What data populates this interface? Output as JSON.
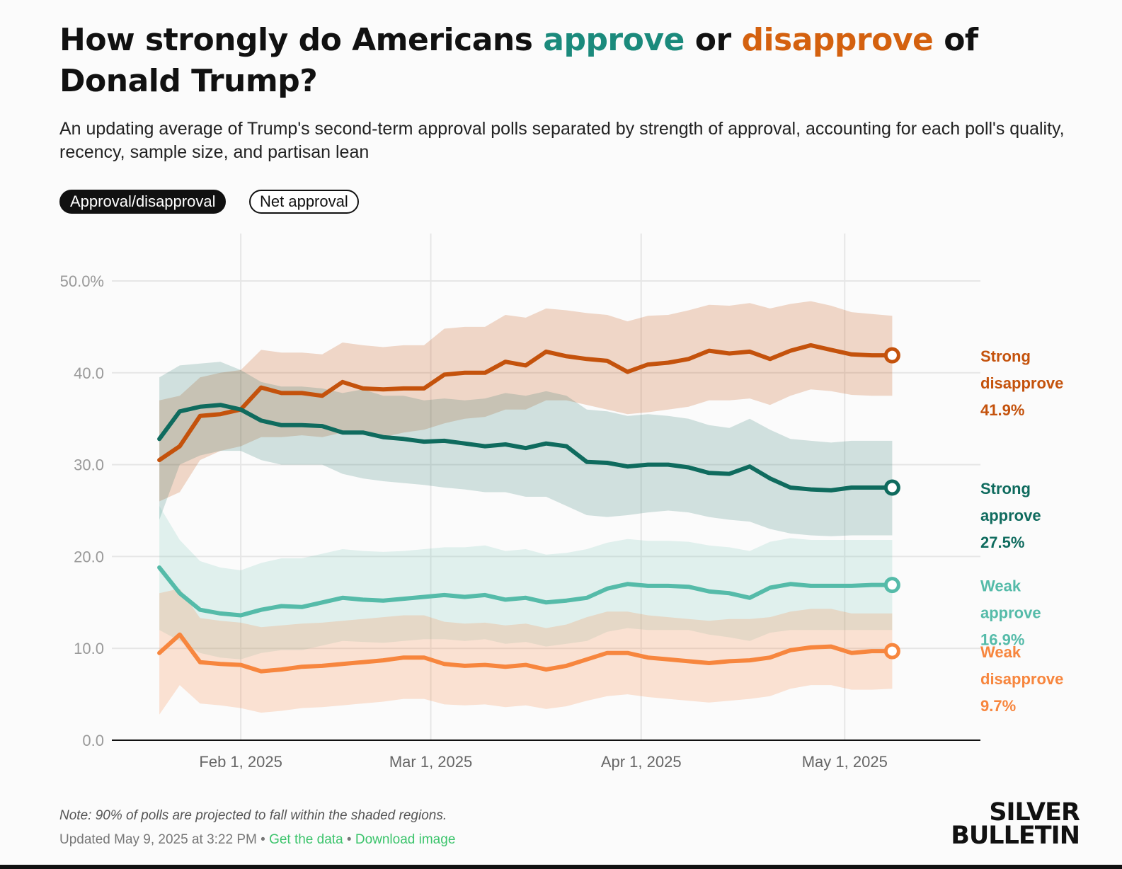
{
  "header": {
    "title_parts": [
      "How strongly do Americans ",
      "approve",
      " or ",
      "disapprove",
      " of Donald Trump?"
    ],
    "subtitle": "An updating average of Trump's second-term approval polls separated by strength of approval, accounting for each poll's quality, recency, sample size, and partisan lean"
  },
  "toggles": {
    "active": "Approval/disapproval",
    "inactive": "Net approval"
  },
  "colors": {
    "approve_accent": "#1b8a7c",
    "disapprove_accent": "#d4610f",
    "strong_disapprove": "#c4520c",
    "strong_approve": "#0f6b5e",
    "weak_approve": "#55bba9",
    "weak_disapprove": "#f7863e"
  },
  "chart_data": {
    "type": "line",
    "title": "",
    "xlabel": "",
    "ylabel": "",
    "ylim": [
      0,
      50
    ],
    "y_ticks": [
      "0.0",
      "10.0",
      "20.0",
      "30.0",
      "40.0",
      "50.0%"
    ],
    "x_ticks": [
      "Feb 1, 2025",
      "Mar 1, 2025",
      "Apr 1, 2025",
      "May 1, 2025"
    ],
    "grid": true,
    "shaded_band_note": "90% of polls are projected to fall within the shaded regions",
    "x": [
      "2025-01-20",
      "2025-01-23",
      "2025-01-26",
      "2025-01-29",
      "2025-02-01",
      "2025-02-04",
      "2025-02-07",
      "2025-02-10",
      "2025-02-13",
      "2025-02-16",
      "2025-02-19",
      "2025-02-22",
      "2025-02-25",
      "2025-02-28",
      "2025-03-03",
      "2025-03-06",
      "2025-03-09",
      "2025-03-12",
      "2025-03-15",
      "2025-03-18",
      "2025-03-21",
      "2025-03-24",
      "2025-03-27",
      "2025-03-30",
      "2025-04-02",
      "2025-04-05",
      "2025-04-08",
      "2025-04-11",
      "2025-04-14",
      "2025-04-17",
      "2025-04-20",
      "2025-04-23",
      "2025-04-26",
      "2025-04-29",
      "2025-05-02",
      "2025-05-05",
      "2025-05-08"
    ],
    "series": [
      {
        "name": "Strong disapprove",
        "values": [
          30.5,
          32.0,
          35.3,
          35.5,
          36.0,
          38.4,
          37.8,
          37.8,
          37.5,
          39.0,
          38.3,
          38.2,
          38.3,
          38.3,
          39.8,
          40.0,
          40.0,
          41.2,
          40.8,
          42.3,
          41.8,
          41.5,
          41.3,
          40.1,
          40.9,
          41.1,
          41.5,
          42.4,
          42.1,
          42.3,
          41.5,
          42.4,
          43.0,
          42.5,
          42.0,
          41.9,
          41.9
        ],
        "lower": [
          26.0,
          27.0,
          30.5,
          31.5,
          32.0,
          33.0,
          33.0,
          33.2,
          33.0,
          33.5,
          33.5,
          33.0,
          33.5,
          33.8,
          34.5,
          35.0,
          35.2,
          36.0,
          36.0,
          37.0,
          37.0,
          36.5,
          36.0,
          35.5,
          35.7,
          36.0,
          36.3,
          37.0,
          37.0,
          37.2,
          36.5,
          37.5,
          38.2,
          38.0,
          37.6,
          37.5,
          37.5
        ],
        "upper": [
          37.0,
          37.5,
          39.5,
          40.0,
          40.3,
          42.5,
          42.2,
          42.2,
          42.0,
          43.3,
          43.0,
          42.8,
          43.0,
          43.0,
          44.8,
          45.0,
          45.0,
          46.3,
          46.0,
          47.0,
          46.8,
          46.5,
          46.3,
          45.6,
          46.2,
          46.3,
          46.8,
          47.4,
          47.3,
          47.6,
          47.0,
          47.5,
          47.8,
          47.3,
          46.6,
          46.4,
          46.2
        ],
        "end_label": [
          "Strong",
          "disapprove",
          "41.9%"
        ]
      },
      {
        "name": "Strong approve",
        "values": [
          32.8,
          35.8,
          36.3,
          36.5,
          36.0,
          34.8,
          34.3,
          34.3,
          34.2,
          33.5,
          33.5,
          33.0,
          32.8,
          32.5,
          32.6,
          32.3,
          32.0,
          32.2,
          31.8,
          32.3,
          32.0,
          30.3,
          30.2,
          29.8,
          30.0,
          30.0,
          29.7,
          29.1,
          29.0,
          29.8,
          28.5,
          27.5,
          27.3,
          27.2,
          27.5,
          27.5,
          27.5
        ],
        "lower": [
          24.0,
          30.0,
          31.0,
          31.5,
          31.5,
          30.5,
          30.0,
          30.0,
          30.0,
          29.0,
          28.5,
          28.2,
          28.0,
          27.8,
          27.5,
          27.3,
          27.0,
          27.0,
          26.5,
          26.5,
          25.5,
          24.5,
          24.3,
          24.5,
          24.8,
          25.0,
          24.8,
          24.3,
          24.0,
          23.8,
          23.0,
          22.5,
          22.3,
          22.2,
          22.3,
          22.3,
          22.3
        ],
        "upper": [
          39.5,
          40.8,
          41.0,
          41.2,
          40.3,
          39.0,
          38.5,
          38.5,
          38.3,
          37.8,
          38.2,
          37.5,
          37.5,
          37.0,
          37.2,
          37.0,
          37.2,
          37.8,
          37.5,
          38.0,
          37.5,
          36.0,
          35.8,
          35.3,
          35.5,
          35.3,
          35.0,
          34.3,
          34.0,
          35.0,
          33.8,
          32.8,
          32.6,
          32.4,
          32.6,
          32.6,
          32.6
        ],
        "end_label": [
          "Strong",
          "approve",
          "27.5%"
        ]
      },
      {
        "name": "Weak approve",
        "values": [
          18.8,
          16.0,
          14.2,
          13.8,
          13.6,
          14.2,
          14.6,
          14.5,
          15.0,
          15.5,
          15.3,
          15.2,
          15.4,
          15.6,
          15.8,
          15.6,
          15.8,
          15.3,
          15.5,
          15.0,
          15.2,
          15.5,
          16.5,
          17.0,
          16.8,
          16.8,
          16.7,
          16.2,
          16.0,
          15.5,
          16.6,
          17.0,
          16.8,
          16.8,
          16.8,
          16.9,
          16.9
        ],
        "lower": [
          12.0,
          10.8,
          9.5,
          9.0,
          8.8,
          9.5,
          9.8,
          9.8,
          10.3,
          10.8,
          10.7,
          10.6,
          10.8,
          11.0,
          11.0,
          10.8,
          11.0,
          10.5,
          10.7,
          10.2,
          10.5,
          10.8,
          11.8,
          12.2,
          12.0,
          12.0,
          12.0,
          11.5,
          11.2,
          10.8,
          11.7,
          12.0,
          12.0,
          12.0,
          12.0,
          12.0,
          12.0
        ],
        "upper": [
          25.5,
          21.8,
          19.5,
          18.8,
          18.5,
          19.3,
          19.8,
          19.8,
          20.3,
          20.8,
          20.6,
          20.5,
          20.6,
          20.8,
          21.0,
          21.0,
          21.2,
          20.6,
          20.8,
          20.2,
          20.4,
          20.8,
          21.5,
          21.9,
          21.7,
          21.7,
          21.6,
          21.2,
          21.0,
          20.6,
          21.6,
          22.0,
          21.8,
          21.8,
          21.8,
          21.8,
          21.8
        ],
        "end_label": [
          "Weak",
          "approve",
          "16.9%"
        ]
      },
      {
        "name": "Weak disapprove",
        "values": [
          9.5,
          11.5,
          8.5,
          8.3,
          8.2,
          7.5,
          7.7,
          8.0,
          8.1,
          8.3,
          8.5,
          8.7,
          9.0,
          9.0,
          8.3,
          8.1,
          8.2,
          8.0,
          8.2,
          7.7,
          8.1,
          8.8,
          9.5,
          9.5,
          9.0,
          8.8,
          8.6,
          8.4,
          8.6,
          8.7,
          9.0,
          9.8,
          10.1,
          10.2,
          9.5,
          9.7,
          9.7
        ],
        "lower": [
          2.8,
          6.0,
          4.0,
          3.8,
          3.5,
          3.0,
          3.2,
          3.5,
          3.6,
          3.8,
          4.0,
          4.2,
          4.5,
          4.5,
          3.9,
          3.8,
          3.9,
          3.6,
          3.8,
          3.4,
          3.7,
          4.3,
          4.8,
          5.0,
          4.7,
          4.5,
          4.3,
          4.1,
          4.3,
          4.5,
          4.8,
          5.6,
          6.0,
          6.0,
          5.5,
          5.5,
          5.6
        ],
        "upper": [
          16.0,
          16.5,
          13.3,
          13.0,
          12.8,
          12.3,
          12.5,
          12.7,
          12.8,
          13.0,
          13.2,
          13.4,
          13.6,
          13.6,
          12.9,
          12.7,
          12.8,
          12.5,
          12.7,
          12.2,
          12.6,
          13.4,
          14.0,
          14.0,
          13.6,
          13.4,
          13.2,
          13.0,
          13.2,
          13.2,
          13.4,
          14.0,
          14.3,
          14.3,
          13.8,
          13.8,
          13.8
        ],
        "end_label": [
          "Weak",
          "disapprove",
          "9.7%"
        ]
      }
    ]
  },
  "footer": {
    "note": "Note: 90% of polls are projected to fall within the shaded regions.",
    "updated": "Updated May 9, 2025 at 3:22 PM",
    "separator": "•",
    "get_data": "Get the data",
    "download": "Download image",
    "logo_line1": "SILVER",
    "logo_line2": "BULLETIN"
  }
}
